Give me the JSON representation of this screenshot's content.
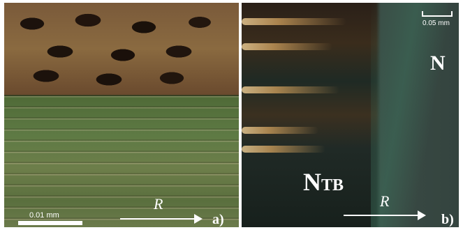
{
  "panel_a": {
    "scale_text": "0.01 mm",
    "direction_label": "R",
    "panel_letter": "a)"
  },
  "panel_b": {
    "scale_text": "0.05 mm",
    "phase_n": "N",
    "phase_ntb_main": "N",
    "phase_ntb_sub": "TB",
    "direction_label": "R",
    "panel_letter": "b)"
  }
}
